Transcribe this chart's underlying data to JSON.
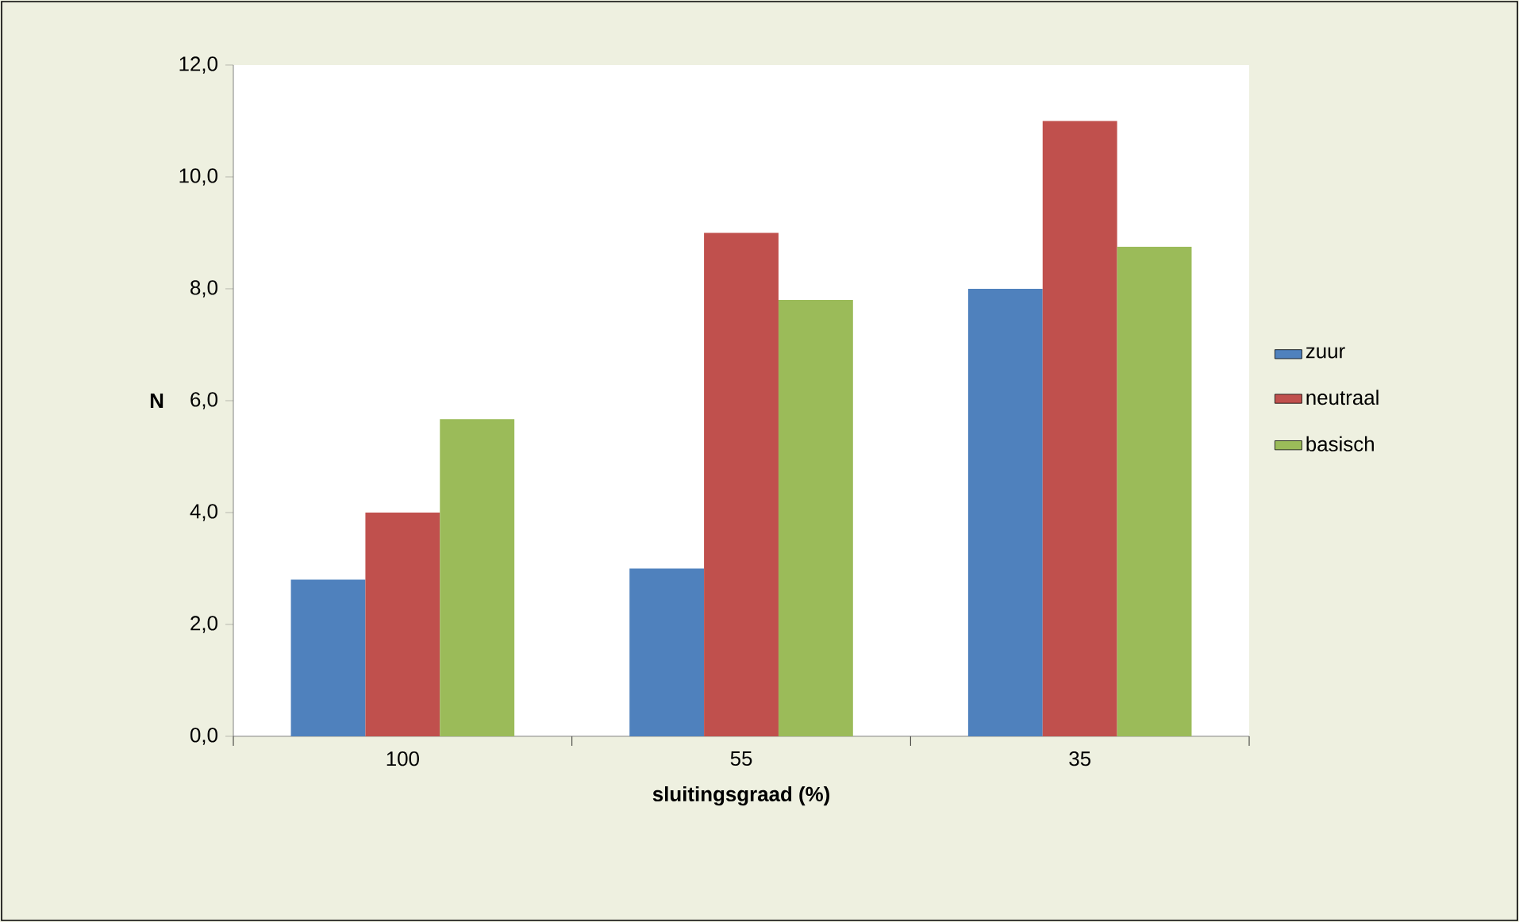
{
  "chart_data": {
    "type": "bar",
    "xlabel": "sluitingsgraad (%)",
    "ylabel": "N",
    "categories": [
      "100",
      "55",
      "35"
    ],
    "series": [
      {
        "name": "zuur",
        "color": "#4f81bd",
        "values": [
          2.8,
          3.0,
          8.0
        ]
      },
      {
        "name": "neutraal",
        "color": "#c0504d",
        "values": [
          4.0,
          9.0,
          11.0
        ]
      },
      {
        "name": "basisch",
        "color": "#9bbb59",
        "values": [
          5.67,
          7.8,
          8.75
        ]
      }
    ],
    "ylim": [
      0,
      12
    ],
    "yticks": [
      {
        "value": 0,
        "label": "0,0"
      },
      {
        "value": 2,
        "label": "2,0"
      },
      {
        "value": 4,
        "label": "4,0"
      },
      {
        "value": 6,
        "label": "6,0"
      },
      {
        "value": 8,
        "label": "8,0"
      },
      {
        "value": 10,
        "label": "10,0"
      },
      {
        "value": 12,
        "label": "12,0"
      }
    ],
    "legend": "right"
  }
}
